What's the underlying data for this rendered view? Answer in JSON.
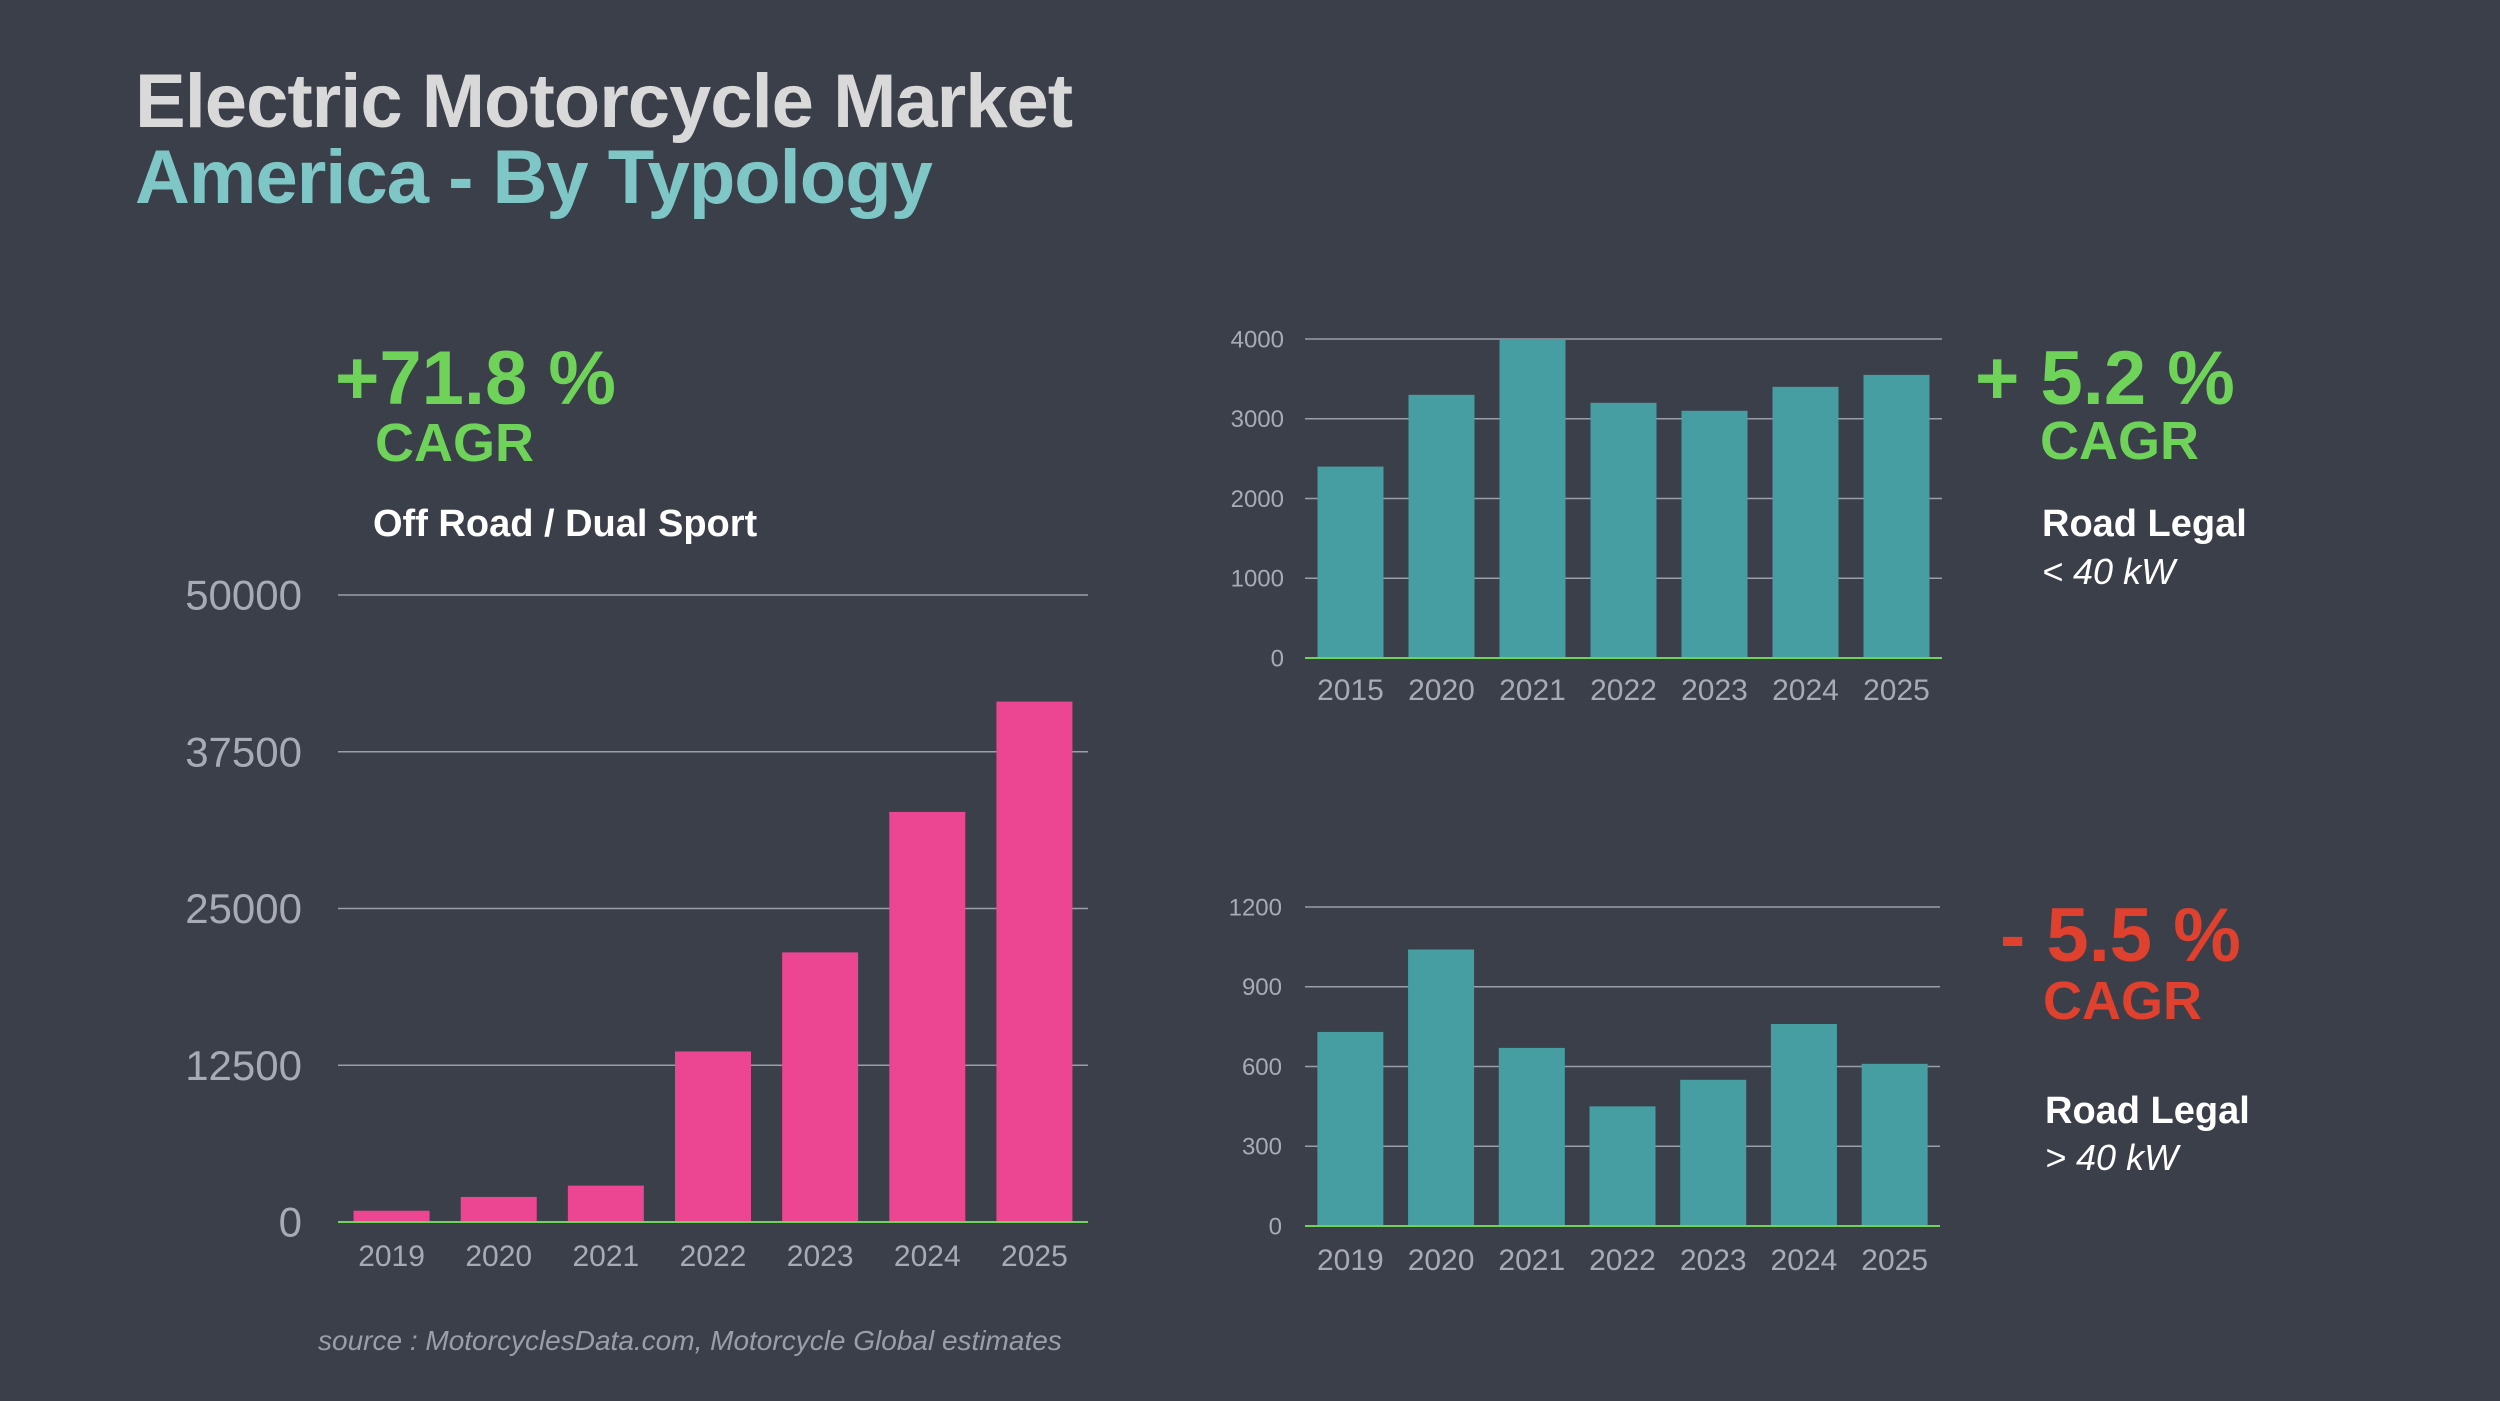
{
  "title": "Electric Motorcycle Market",
  "subtitle": "America - By Typology",
  "source": "source : MotorcyclesData.com, Motorcycle Global estimates",
  "colors": {
    "pink": "#ec4592",
    "teal": "#469ea2",
    "green": "#6fd35a",
    "red": "#e0402e",
    "grid": "#9a9ea8",
    "tick": "#a8abb3"
  },
  "panels": {
    "offroad": {
      "cagr": "+71.8 %",
      "cagr_label": "CAGR",
      "title": "Off Road / Dual Sport",
      "subtitle": ""
    },
    "road_low": {
      "cagr": "+ 5.2 %",
      "cagr_label": "CAGR",
      "title": "Road Legal",
      "subtitle": "< 40 kW"
    },
    "road_high": {
      "cagr": "- 5.5 %",
      "cagr_label": "CAGR",
      "title": "Road Legal",
      "subtitle": "> 40 kW"
    }
  },
  "chart_data": [
    {
      "id": "offroad",
      "type": "bar",
      "categories": [
        "2019",
        "2020",
        "2021",
        "2022",
        "2023",
        "2024",
        "2025"
      ],
      "values": [
        900,
        2000,
        2900,
        13600,
        21500,
        32700,
        41500
      ],
      "yticks": [
        0,
        12500,
        25000,
        37500,
        50000
      ],
      "ylim": [
        0,
        50000
      ],
      "grid": true
    },
    {
      "id": "road_low",
      "type": "bar",
      "categories": [
        "2015",
        "2020",
        "2021",
        "2022",
        "2023",
        "2024",
        "2025"
      ],
      "values": [
        2400,
        3300,
        4000,
        3200,
        3100,
        3400,
        3550
      ],
      "yticks": [
        0,
        1000,
        2000,
        3000,
        4000
      ],
      "ylim": [
        0,
        4000
      ],
      "grid": true
    },
    {
      "id": "road_high",
      "type": "bar",
      "categories": [
        "2019",
        "2020",
        "2021",
        "2022",
        "2023",
        "2024",
        "2025"
      ],
      "values": [
        730,
        1040,
        670,
        450,
        550,
        760,
        610
      ],
      "yticks": [
        0,
        300,
        600,
        900,
        1200
      ],
      "ylim": [
        0,
        1200
      ],
      "grid": true
    }
  ]
}
